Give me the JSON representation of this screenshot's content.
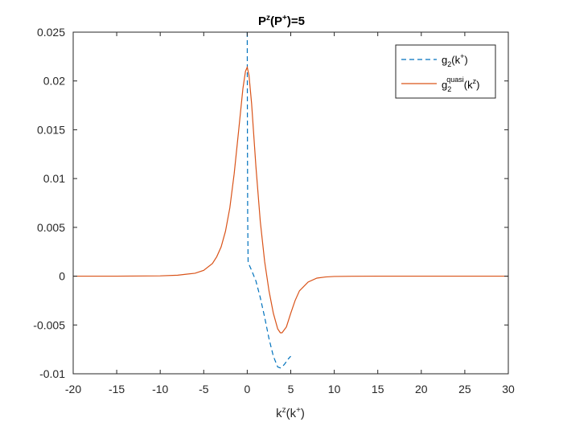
{
  "chart_data": {
    "type": "line",
    "title": {
      "base": "P",
      "base_sup": "z",
      "paren": "P",
      "paren_sup": "+",
      "suffix": "=5"
    },
    "xlabel": {
      "base": "k",
      "base_sup": "z",
      "paren": "k",
      "paren_sup": "+"
    },
    "ylabel": "",
    "xlim": [
      -20,
      30
    ],
    "ylim": [
      -0.01,
      0.025
    ],
    "xticks": [
      -20,
      -15,
      -10,
      -5,
      0,
      5,
      10,
      15,
      20,
      25,
      30
    ],
    "xtick_labels": [
      "-20",
      "-15",
      "-10",
      "-5",
      "0",
      "5",
      "10",
      "15",
      "20",
      "25",
      "30"
    ],
    "yticks": [
      -0.01,
      -0.005,
      0,
      0.005,
      0.01,
      0.015,
      0.02,
      0.025
    ],
    "ytick_labels": [
      "-0.01",
      "-0.005",
      "0",
      "0.005",
      "0.01",
      "0.015",
      "0.02",
      "0.025"
    ],
    "grid": false,
    "legend_position": "top-right",
    "series": [
      {
        "name": "g2(k+)",
        "legend": {
          "base": "g",
          "sub": "2",
          "sup": "",
          "paren": "k",
          "paren_sup": "+"
        },
        "color": "#0072BD",
        "style": "dashed",
        "x": [
          0.0,
          0.02,
          0.05,
          0.1,
          0.2,
          0.3,
          0.5,
          1.0,
          1.5,
          2.0,
          2.5,
          3.0,
          3.5,
          3.8,
          4.0,
          4.3,
          4.7,
          5.0
        ],
        "y": [
          0.025,
          0.015,
          0.006,
          0.0015,
          0.0012,
          0.001,
          0.0006,
          -0.0005,
          -0.0022,
          -0.0042,
          -0.0064,
          -0.0082,
          -0.0093,
          -0.0094,
          -0.0093,
          -0.009,
          -0.0085,
          -0.0082
        ]
      },
      {
        "name": "g2quasi(kz)",
        "legend": {
          "base": "g",
          "sub": "2",
          "sup": "quasi",
          "paren": "k",
          "paren_sup": "z"
        },
        "color": "#D95319",
        "style": "solid",
        "x": [
          -20,
          -15,
          -10,
          -8,
          -7,
          -6,
          -5,
          -4,
          -3.5,
          -3,
          -2.5,
          -2,
          -1.5,
          -1,
          -0.5,
          -0.2,
          0.0,
          0.2,
          0.5,
          1.0,
          1.5,
          2.0,
          2.5,
          3.0,
          3.5,
          3.8,
          4.0,
          4.5,
          5.0,
          5.5,
          6.0,
          7.0,
          8.0,
          9.0,
          10.0,
          12.0,
          15.0,
          20.0,
          25.0,
          30.0
        ],
        "y": [
          0.0,
          0.0,
          3e-05,
          0.0001,
          0.0002,
          0.0003,
          0.0006,
          0.0013,
          0.002,
          0.003,
          0.0046,
          0.007,
          0.0105,
          0.0148,
          0.0192,
          0.021,
          0.0214,
          0.0206,
          0.0177,
          0.0112,
          0.0056,
          0.0015,
          -0.0015,
          -0.0038,
          -0.0054,
          -0.0058,
          -0.0058,
          -0.0052,
          -0.0038,
          -0.0025,
          -0.0015,
          -0.0006,
          -0.0002,
          -8e-05,
          -3e-05,
          -1e-05,
          0.0,
          0.0,
          0.0,
          0.0
        ]
      }
    ]
  }
}
